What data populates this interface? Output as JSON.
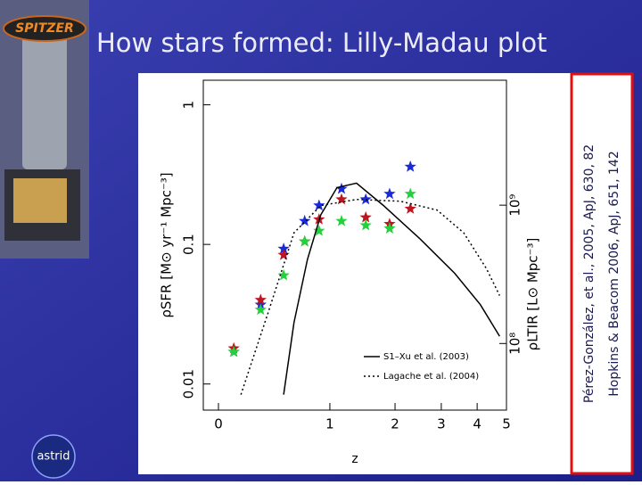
{
  "slide": {
    "title": "How stars formed: Lilly-Madau plot",
    "citations": [
      "Pérez-González, et al., 2005, ApJ, 630, 82",
      "Hopkins & Beacom 2006, ApJ, 651, 142"
    ],
    "logos": [
      "SPITZER",
      "astrid"
    ]
  },
  "chart_data": {
    "type": "scatter",
    "x_label": "z",
    "y_label": "ρSFR [M⊙ yr⁻¹ Mpc⁻³]",
    "y2_label": "ρLTIR [L⊙ Mpc⁻³]",
    "xscale": "log1p",
    "yscale": "log",
    "xlim": [
      -0.09,
      5.0
    ],
    "xticks": [
      0,
      1,
      2,
      3,
      4,
      5
    ],
    "ylim": [
      0.0065,
      1.5
    ],
    "yticks": [
      0.01,
      0.1,
      1
    ],
    "y2lim": [
      33000000,
      8000000000
    ],
    "y2ticks": [
      {
        "value": 100000000,
        "label": "10⁸"
      },
      {
        "value": 1000000000,
        "label": "10⁹"
      }
    ],
    "series": [
      {
        "color": "#1a2ad8",
        "style": "star",
        "x": [
          0.1,
          0.3,
          0.5,
          0.71,
          0.87,
          1.15,
          1.5,
          1.9,
          2.3
        ],
        "values": [
          0.017,
          0.037,
          0.093,
          0.147,
          0.19,
          0.25,
          0.21,
          0.23,
          0.36
        ]
      },
      {
        "color": "#c0141e",
        "style": "star",
        "x": [
          0.1,
          0.3,
          0.5,
          0.71,
          0.87,
          1.15,
          1.5,
          1.9,
          2.3
        ],
        "values": [
          0.018,
          0.04,
          0.084,
          0.105,
          0.151,
          0.21,
          0.156,
          0.14,
          0.18
        ]
      },
      {
        "color": "#22d23a",
        "style": "star",
        "x": [
          0.1,
          0.3,
          0.5,
          0.71,
          0.87,
          1.15,
          1.5,
          1.9,
          2.3
        ],
        "values": [
          0.017,
          0.034,
          0.06,
          0.105,
          0.125,
          0.147,
          0.137,
          0.13,
          0.23
        ]
      },
      {
        "name": "S1–Xu et al. (2003)",
        "color": "#000000",
        "style": "solid",
        "x": [
          0.5,
          0.6,
          0.74,
          0.89,
          1.09,
          1.36,
          1.79,
          2.5,
          3.35,
          4.1,
          4.75
        ],
        "values": [
          0.0084,
          0.0275,
          0.078,
          0.163,
          0.255,
          0.275,
          0.19,
          0.11,
          0.062,
          0.037,
          0.022
        ]
      },
      {
        "name": "Lagache et al. (2004)",
        "color": "#000000",
        "style": "dotted",
        "x": [
          0.15,
          0.36,
          0.6,
          0.89,
          1.36,
          2.1,
          2.9,
          3.6,
          4.3,
          4.75
        ],
        "values": [
          0.0084,
          0.032,
          0.121,
          0.19,
          0.21,
          0.204,
          0.176,
          0.121,
          0.067,
          0.043
        ]
      }
    ]
  }
}
